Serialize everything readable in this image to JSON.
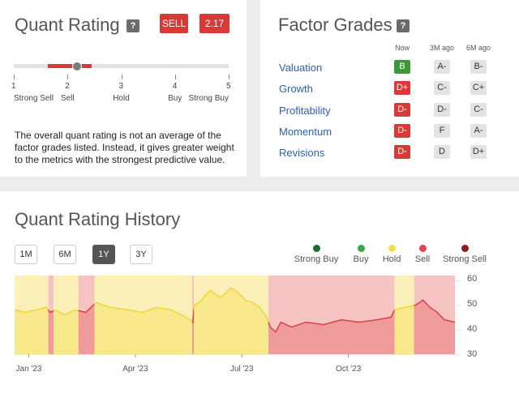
{
  "quant_rating": {
    "title": "Quant Rating",
    "help": "?",
    "rating_label": "SELL",
    "score": "2.17",
    "scale_value": 2.17,
    "scale": [
      {
        "num": "1",
        "label": "Strong Sell"
      },
      {
        "num": "2",
        "label": "Sell"
      },
      {
        "num": "3",
        "label": "Hold"
      },
      {
        "num": "4",
        "label": "Buy"
      },
      {
        "num": "5",
        "label": "Strong Buy"
      }
    ],
    "description": "The overall quant rating is not an average of the factor grades listed. Instead, it gives greater weight to the metrics with the strongest predictive value."
  },
  "factor_grades": {
    "title": "Factor Grades",
    "help": "?",
    "columns": [
      "Now",
      "3M ago",
      "6M ago"
    ],
    "rows": [
      {
        "factor": "Valuation",
        "now": "B",
        "m3": "A-",
        "m6": "B-"
      },
      {
        "factor": "Growth",
        "now": "D+",
        "m3": "C-",
        "m6": "C+"
      },
      {
        "factor": "Profitability",
        "now": "D-",
        "m3": "D-",
        "m6": "C-"
      },
      {
        "factor": "Momentum",
        "now": "D-",
        "m3": "F",
        "m6": "A-"
      },
      {
        "factor": "Revisions",
        "now": "D-",
        "m3": "D",
        "m6": "D+"
      }
    ]
  },
  "history": {
    "title": "Quant Rating History",
    "ranges": [
      "1M",
      "6M",
      "1Y",
      "3Y"
    ],
    "active_range": "1Y",
    "legend": [
      {
        "label": "Strong Buy",
        "color": "#1e6b2e"
      },
      {
        "label": "Buy",
        "color": "#3aa845"
      },
      {
        "label": "Hold",
        "color": "#f5dc4a"
      },
      {
        "label": "Sell",
        "color": "#e0464b"
      },
      {
        "label": "Strong Sell",
        "color": "#8e1c1c"
      }
    ]
  },
  "chart_data": {
    "type": "area",
    "y_ticks": [
      60,
      50,
      40,
      30
    ],
    "ylim": [
      30,
      62
    ],
    "x_ticks": [
      {
        "label": "Jan '23",
        "month": 0.2
      },
      {
        "label": "Apr '23",
        "month": 3.2
      },
      {
        "label": "Jul '23",
        "month": 6.2
      },
      {
        "label": "Oct '23",
        "month": 9.2
      }
    ],
    "segments": [
      {
        "rating": "Hold",
        "start": -0.2,
        "end": 0.75
      },
      {
        "rating": "Sell",
        "start": 0.75,
        "end": 0.9
      },
      {
        "rating": "Hold",
        "start": 0.9,
        "end": 1.6
      },
      {
        "rating": "Sell",
        "start": 1.6,
        "end": 2.05
      },
      {
        "rating": "Hold",
        "start": 2.05,
        "end": 4.8
      },
      {
        "rating": "Sell",
        "start": 4.8,
        "end": 4.85
      },
      {
        "rating": "Hold",
        "start": 4.85,
        "end": 6.95
      },
      {
        "rating": "Sell",
        "start": 6.95,
        "end": 10.5
      },
      {
        "rating": "Hold",
        "start": 10.5,
        "end": 11.05
      },
      {
        "rating": "Sell",
        "start": 11.05,
        "end": 12.2
      }
    ],
    "series": {
      "month": [
        -0.2,
        0.1,
        0.4,
        0.7,
        0.8,
        0.95,
        1.2,
        1.5,
        1.8,
        2.1,
        2.5,
        3.0,
        3.4,
        3.8,
        4.2,
        4.5,
        4.75,
        4.82,
        4.86,
        5.0,
        5.3,
        5.6,
        5.9,
        6.1,
        6.3,
        6.5,
        6.7,
        6.9,
        7.0,
        7.15,
        7.3,
        7.6,
        8.0,
        8.5,
        9.0,
        9.5,
        10.0,
        10.4,
        10.5,
        10.8,
        11.1,
        11.3,
        11.5,
        11.7,
        11.9,
        12.2
      ],
      "score": [
        48,
        47,
        48,
        49,
        47,
        48,
        46,
        48,
        47,
        51,
        49,
        48,
        47,
        49,
        48,
        46,
        44,
        43,
        50,
        51,
        56,
        53,
        57,
        55,
        52,
        51,
        49,
        45,
        41,
        39,
        43,
        41,
        43,
        42,
        44,
        43,
        44,
        45,
        48,
        49,
        50,
        52,
        49,
        47,
        44,
        43
      ]
    }
  }
}
